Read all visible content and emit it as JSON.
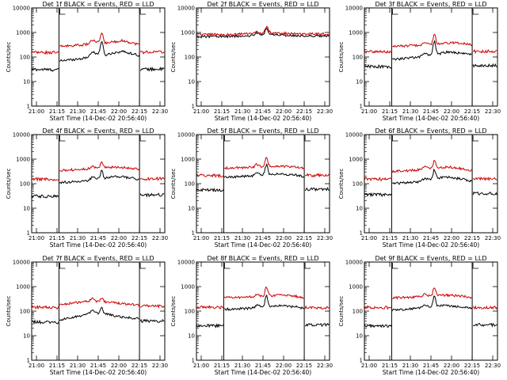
{
  "chart_data": [
    {
      "type": "line",
      "det": "1f",
      "title": "Det 1f BLACK = Events, RED = LLD",
      "xlabel": "Start Time (14-Dec-02 20:56:40)",
      "ylabel": "Counts/sec",
      "xticks": [
        "21:00",
        "21:15",
        "21:30",
        "21:45",
        "22:00",
        "22:15",
        "22:30"
      ],
      "yticks": [
        "1",
        "10",
        "100",
        "1000",
        "10000"
      ],
      "ylim": [
        1,
        10000
      ],
      "xlim": [
        0,
        100
      ],
      "cutouts": [
        20.5,
        81
      ],
      "series": [
        {
          "name": "Events",
          "color": "#000000",
          "pre": 30,
          "in": [
            [
              21,
              70
            ],
            [
              40,
              90
            ],
            [
              47,
              140
            ],
            [
              55,
              120
            ],
            [
              62,
              150
            ],
            [
              68,
              170
            ],
            [
              75,
              140
            ],
            [
              80,
              120
            ]
          ],
          "post": 32,
          "flare": [
            52.6,
            3.5
          ]
        },
        {
          "name": "LLD",
          "color": "#cc0000",
          "pre": 150,
          "in": [
            [
              21,
              270
            ],
            [
              40,
              320
            ],
            [
              47,
              400
            ],
            [
              55,
              370
            ],
            [
              62,
              420
            ],
            [
              68,
              470
            ],
            [
              75,
              380
            ],
            [
              80,
              330
            ]
          ],
          "post": 160,
          "flare": [
            52.6,
            2.6
          ]
        }
      ]
    },
    {
      "type": "line",
      "det": "2f",
      "title": "Det 2f BLACK = Events, RED = LLD",
      "xlabel": "Start Time (14-Dec-02 20:56:40)",
      "ylabel": "Counts/sec",
      "xticks": [
        "21:00",
        "21:15",
        "21:30",
        "21:45",
        "22:00",
        "22:15",
        "22:30"
      ],
      "yticks": [
        "1",
        "10",
        "100",
        "1000",
        "10000"
      ],
      "ylim": [
        1,
        10000
      ],
      "xlim": [
        0,
        100
      ],
      "cutouts": [],
      "series": [
        {
          "name": "Events",
          "color": "#000000",
          "pre": 680,
          "in": [
            [
              0,
              680
            ],
            [
              30,
              700
            ],
            [
              50,
              780
            ],
            [
              53,
              1100
            ],
            [
              57,
              800
            ],
            [
              70,
              760
            ],
            [
              100,
              720
            ]
          ],
          "post": 720,
          "flare": [
            52.6,
            1.4
          ]
        },
        {
          "name": "LLD",
          "color": "#cc0000",
          "pre": 820,
          "in": [
            [
              0,
              820
            ],
            [
              30,
              840
            ],
            [
              50,
              920
            ],
            [
              53,
              1350
            ],
            [
              57,
              950
            ],
            [
              70,
              900
            ],
            [
              100,
              860
            ]
          ],
          "post": 860,
          "flare": [
            52.6,
            1.3
          ]
        }
      ]
    },
    {
      "type": "line",
      "det": "3f",
      "title": "Det 3f BLACK = Events, RED = LLD",
      "xlabel": "Start Time (14-Dec-02 20:56:40)",
      "ylabel": "Counts/sec",
      "xticks": [
        "21:00",
        "21:15",
        "21:30",
        "21:45",
        "22:00",
        "22:15",
        "22:30"
      ],
      "yticks": [
        "1",
        "10",
        "100",
        "1000",
        "10000"
      ],
      "ylim": [
        1,
        10000
      ],
      "xlim": [
        0,
        100
      ],
      "cutouts": [
        20.5,
        81
      ],
      "series": [
        {
          "name": "Events",
          "color": "#000000",
          "pre": 40,
          "in": [
            [
              21,
              80
            ],
            [
              40,
              100
            ],
            [
              47,
              120
            ],
            [
              55,
              130
            ],
            [
              62,
              160
            ],
            [
              68,
              150
            ],
            [
              75,
              140
            ],
            [
              80,
              130
            ]
          ],
          "post": 45,
          "flare": [
            52.6,
            3.5
          ]
        },
        {
          "name": "LLD",
          "color": "#cc0000",
          "pre": 160,
          "in": [
            [
              21,
              270
            ],
            [
              40,
              300
            ],
            [
              47,
              330
            ],
            [
              55,
              340
            ],
            [
              62,
              370
            ],
            [
              68,
              390
            ],
            [
              75,
              350
            ],
            [
              80,
              320
            ]
          ],
          "post": 170,
          "flare": [
            52.6,
            2.6
          ]
        }
      ]
    },
    {
      "type": "line",
      "det": "4f",
      "title": "Det 4f BLACK = Events, RED = LLD",
      "xlabel": "Start Time (14-Dec-02 20:56:40)",
      "ylabel": "Counts/sec",
      "xticks": [
        "21:00",
        "21:15",
        "21:30",
        "21:45",
        "22:00",
        "22:15",
        "22:30"
      ],
      "yticks": [
        "1",
        "10",
        "100",
        "1000",
        "10000"
      ],
      "ylim": [
        1,
        10000
      ],
      "xlim": [
        0,
        100
      ],
      "cutouts": [
        20.5,
        81
      ],
      "series": [
        {
          "name": "Events",
          "color": "#000000",
          "pre": 30,
          "in": [
            [
              21,
              110
            ],
            [
              40,
              130
            ],
            [
              47,
              150
            ],
            [
              55,
              170
            ],
            [
              62,
              200
            ],
            [
              68,
              190
            ],
            [
              75,
              170
            ],
            [
              80,
              150
            ]
          ],
          "post": 35,
          "flare": [
            52.6,
            2.0
          ]
        },
        {
          "name": "LLD",
          "color": "#cc0000",
          "pre": 150,
          "in": [
            [
              21,
              350
            ],
            [
              40,
              390
            ],
            [
              47,
              420
            ],
            [
              55,
              450
            ],
            [
              62,
              480
            ],
            [
              68,
              470
            ],
            [
              75,
              420
            ],
            [
              80,
              380
            ]
          ],
          "post": 160,
          "flare": [
            52.6,
            1.8
          ]
        }
      ]
    },
    {
      "type": "line",
      "det": "5f",
      "title": "Det 5f BLACK = Events, RED = LLD",
      "xlabel": "Start Time (14-Dec-02 20:56:40)",
      "ylabel": "Counts/sec",
      "xticks": [
        "21:00",
        "21:15",
        "21:30",
        "21:45",
        "22:00",
        "22:15",
        "22:30"
      ],
      "yticks": [
        "1",
        "10",
        "100",
        "1000",
        "10000"
      ],
      "ylim": [
        1,
        10000
      ],
      "xlim": [
        0,
        100
      ],
      "cutouts": [
        20.5,
        81
      ],
      "series": [
        {
          "name": "Events",
          "color": "#000000",
          "pre": 55,
          "in": [
            [
              21,
              190
            ],
            [
              40,
              200
            ],
            [
              47,
              230
            ],
            [
              55,
              240
            ],
            [
              62,
              250
            ],
            [
              68,
              240
            ],
            [
              75,
              220
            ],
            [
              80,
              200
            ]
          ],
          "post": 60,
          "flare": [
            52.6,
            2.5
          ]
        },
        {
          "name": "LLD",
          "color": "#cc0000",
          "pre": 210,
          "in": [
            [
              21,
              430
            ],
            [
              40,
              460
            ],
            [
              47,
              500
            ],
            [
              55,
              520
            ],
            [
              62,
              530
            ],
            [
              68,
              510
            ],
            [
              75,
              470
            ],
            [
              80,
              420
            ]
          ],
          "post": 220,
          "flare": [
            52.6,
            2.2
          ]
        }
      ]
    },
    {
      "type": "line",
      "det": "6f",
      "title": "Det 6f BLACK = Events, RED = LLD",
      "xlabel": "Start Time (14-Dec-02 20:56:40)",
      "ylabel": "Counts/sec",
      "xticks": [
        "21:00",
        "21:15",
        "21:30",
        "21:45",
        "22:00",
        "22:15",
        "22:30"
      ],
      "yticks": [
        "1",
        "10",
        "100",
        "1000",
        "10000"
      ],
      "ylim": [
        1,
        10000
      ],
      "xlim": [
        0,
        100
      ],
      "cutouts": [
        20.5,
        81
      ],
      "series": [
        {
          "name": "Events",
          "color": "#000000",
          "pre": 35,
          "in": [
            [
              21,
              100
            ],
            [
              40,
              120
            ],
            [
              47,
              140
            ],
            [
              55,
              170
            ],
            [
              62,
              190
            ],
            [
              68,
              170
            ],
            [
              75,
              150
            ],
            [
              80,
              130
            ]
          ],
          "post": 40,
          "flare": [
            52.6,
            2.4
          ]
        },
        {
          "name": "LLD",
          "color": "#cc0000",
          "pre": 150,
          "in": [
            [
              21,
              320
            ],
            [
              40,
              360
            ],
            [
              47,
              400
            ],
            [
              55,
              450
            ],
            [
              62,
              480
            ],
            [
              68,
              450
            ],
            [
              75,
              400
            ],
            [
              80,
              350
            ]
          ],
          "post": 160,
          "flare": [
            52.6,
            2.0
          ]
        }
      ]
    },
    {
      "type": "line",
      "det": "7f",
      "title": "Det 7f BLACK = Events, RED = LLD",
      "xlabel": "Start Time (14-Dec-02 20:56:40)",
      "ylabel": "Counts/sec",
      "xticks": [
        "21:00",
        "21:15",
        "21:30",
        "21:45",
        "22:00",
        "22:15",
        "22:30"
      ],
      "yticks": [
        "1",
        "10",
        "100",
        "1000",
        "10000"
      ],
      "ylim": [
        1,
        10000
      ],
      "xlim": [
        0,
        100
      ],
      "cutouts": [
        20.5,
        81
      ],
      "series": [
        {
          "name": "Events",
          "color": "#000000",
          "pre": 35,
          "in": [
            [
              21,
              45
            ],
            [
              30,
              55
            ],
            [
              40,
              70
            ],
            [
              47,
              85
            ],
            [
              55,
              80
            ],
            [
              62,
              65
            ],
            [
              70,
              55
            ],
            [
              80,
              50
            ]
          ],
          "post": 40,
          "flare": [
            52.6,
            1.8
          ]
        },
        {
          "name": "LLD",
          "color": "#cc0000",
          "pre": 140,
          "in": [
            [
              21,
              180
            ],
            [
              30,
              210
            ],
            [
              40,
              250
            ],
            [
              47,
              260
            ],
            [
              55,
              240
            ],
            [
              62,
              220
            ],
            [
              70,
              200
            ],
            [
              80,
              180
            ]
          ],
          "post": 160,
          "flare": [
            52.6,
            1.4
          ]
        }
      ]
    },
    {
      "type": "line",
      "det": "8f",
      "title": "Det 8f BLACK = Events, RED = LLD",
      "xlabel": "Start Time (14-Dec-02 20:56:40)",
      "ylabel": "Counts/sec",
      "xticks": [
        "21:00",
        "21:15",
        "21:30",
        "21:45",
        "22:00",
        "22:15",
        "22:30"
      ],
      "yticks": [
        "1",
        "10",
        "100",
        "1000",
        "10000"
      ],
      "ylim": [
        1,
        10000
      ],
      "xlim": [
        0,
        100
      ],
      "cutouts": [
        20.5,
        81
      ],
      "series": [
        {
          "name": "Events",
          "color": "#000000",
          "pre": 25,
          "in": [
            [
              21,
              120
            ],
            [
              40,
              130
            ],
            [
              47,
              150
            ],
            [
              55,
              160
            ],
            [
              62,
              170
            ],
            [
              68,
              160
            ],
            [
              75,
              150
            ],
            [
              80,
              130
            ]
          ],
          "post": 28,
          "flare": [
            52.6,
            2.8
          ]
        },
        {
          "name": "LLD",
          "color": "#cc0000",
          "pre": 140,
          "in": [
            [
              21,
              350
            ],
            [
              40,
              380
            ],
            [
              47,
              410
            ],
            [
              55,
              430
            ],
            [
              62,
              450
            ],
            [
              68,
              430
            ],
            [
              75,
              400
            ],
            [
              80,
              350
            ]
          ],
          "post": 140,
          "flare": [
            52.6,
            2.3
          ]
        }
      ]
    },
    {
      "type": "line",
      "det": "9f",
      "title": "Det 9f BLACK = Events, RED = LLD",
      "xlabel": "Start Time (14-Dec-02 20:56:40)",
      "ylabel": "Counts/sec",
      "xticks": [
        "21:00",
        "21:15",
        "21:30",
        "21:45",
        "22:00",
        "22:15",
        "22:30"
      ],
      "yticks": [
        "1",
        "10",
        "100",
        "1000",
        "10000"
      ],
      "ylim": [
        1,
        10000
      ],
      "xlim": [
        0,
        100
      ],
      "cutouts": [
        20.5,
        81
      ],
      "series": [
        {
          "name": "Events",
          "color": "#000000",
          "pre": 25,
          "in": [
            [
              21,
              110
            ],
            [
              40,
              130
            ],
            [
              47,
              150
            ],
            [
              55,
              160
            ],
            [
              62,
              170
            ],
            [
              68,
              160
            ],
            [
              75,
              150
            ],
            [
              80,
              130
            ]
          ],
          "post": 28,
          "flare": [
            52.6,
            2.8
          ]
        },
        {
          "name": "LLD",
          "color": "#cc0000",
          "pre": 140,
          "in": [
            [
              21,
              350
            ],
            [
              40,
              380
            ],
            [
              47,
              410
            ],
            [
              55,
              430
            ],
            [
              62,
              450
            ],
            [
              68,
              430
            ],
            [
              75,
              400
            ],
            [
              80,
              350
            ]
          ],
          "post": 140,
          "flare": [
            52.6,
            2.3
          ]
        }
      ]
    }
  ]
}
